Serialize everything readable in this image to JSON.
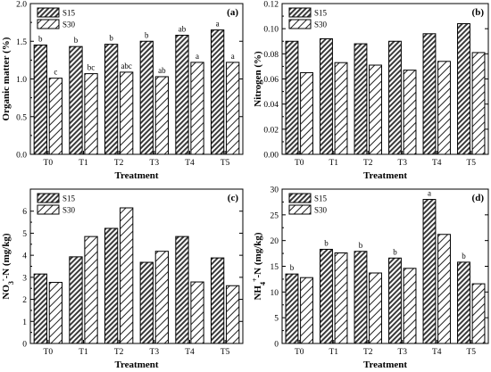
{
  "chart_data": [
    {
      "type": "bar",
      "panel_label": "(a)",
      "xlabel": "Treatment",
      "ylabel": "Organic matter (%)",
      "ylim": [
        0,
        2.0
      ],
      "yticks": [
        "0.0",
        "0.5",
        "1.0",
        "1.5",
        "2.0"
      ],
      "ytick_values": [
        0,
        0.5,
        1.0,
        1.5,
        2.0
      ],
      "categories": [
        "T0",
        "T1",
        "T2",
        "T3",
        "T4",
        "T5"
      ],
      "legend": "top-left",
      "series": [
        {
          "name": "S15",
          "values": [
            1.45,
            1.43,
            1.46,
            1.5,
            1.58,
            1.65
          ],
          "pattern": "hatch-dense",
          "labels": [
            "b",
            "b",
            "b",
            "b",
            "ab",
            "a"
          ]
        },
        {
          "name": "S30",
          "values": [
            1.01,
            1.07,
            1.09,
            1.03,
            1.22,
            1.22
          ],
          "pattern": "hatch-sparse",
          "labels": [
            "c",
            "bc",
            "abc",
            "ab",
            "a",
            "a"
          ]
        }
      ]
    },
    {
      "type": "bar",
      "panel_label": "(b)",
      "xlabel": "Treatment",
      "ylabel": "Nitrogen (%)",
      "ylim": [
        0,
        0.12
      ],
      "yticks": [
        "0.00",
        "0.02",
        "0.04",
        "0.06",
        "0.08",
        "0.10",
        "0.12"
      ],
      "ytick_values": [
        0,
        0.02,
        0.04,
        0.06,
        0.08,
        0.1,
        0.12
      ],
      "categories": [
        "T0",
        "T1",
        "T2",
        "T3",
        "T4",
        "T5"
      ],
      "legend": "top-left",
      "series": [
        {
          "name": "S15",
          "values": [
            0.09,
            0.092,
            0.088,
            0.09,
            0.096,
            0.104
          ],
          "pattern": "hatch-dense"
        },
        {
          "name": "S30",
          "values": [
            0.065,
            0.073,
            0.071,
            0.067,
            0.074,
            0.081
          ],
          "pattern": "hatch-sparse"
        }
      ]
    },
    {
      "type": "bar",
      "panel_label": "(c)",
      "xlabel": "Treatment",
      "ylabel_parts": [
        "NO",
        "3",
        "-",
        "-N (mg/kg)"
      ],
      "ylim": [
        0,
        7
      ],
      "yticks": [
        "0",
        "1",
        "2",
        "3",
        "4",
        "5",
        "6"
      ],
      "ytick_values": [
        0,
        1,
        2,
        3,
        4,
        5,
        6
      ],
      "categories": [
        "T0",
        "T1",
        "T2",
        "T3",
        "T4",
        "T5"
      ],
      "legend": "top-left",
      "series": [
        {
          "name": "S15",
          "values": [
            3.15,
            3.93,
            5.22,
            3.68,
            4.85,
            3.88
          ],
          "pattern": "hatch-dense"
        },
        {
          "name": "S30",
          "values": [
            2.77,
            4.85,
            6.15,
            4.18,
            2.79,
            2.62
          ],
          "pattern": "hatch-sparse"
        }
      ]
    },
    {
      "type": "bar",
      "panel_label": "(d)",
      "xlabel": "Treatment",
      "ylabel_parts": [
        "NH",
        "4",
        "+",
        "-N (mg/kg)"
      ],
      "ylim": [
        0,
        30
      ],
      "yticks": [
        "0",
        "5",
        "10",
        "15",
        "20",
        "25",
        "30"
      ],
      "ytick_values": [
        0,
        5,
        10,
        15,
        20,
        25,
        30
      ],
      "categories": [
        "T0",
        "T1",
        "T2",
        "T3",
        "T4",
        "T5"
      ],
      "legend": "top-left",
      "series": [
        {
          "name": "S15",
          "values": [
            13.5,
            18.3,
            17.9,
            16.6,
            28,
            15.8
          ],
          "pattern": "hatch-dense",
          "labels": [
            "b",
            "b",
            "b",
            "b",
            "a",
            "b"
          ]
        },
        {
          "name": "S30",
          "values": [
            12.8,
            17.6,
            13.7,
            14.6,
            21.2,
            11.6
          ],
          "pattern": "hatch-sparse"
        }
      ]
    }
  ]
}
